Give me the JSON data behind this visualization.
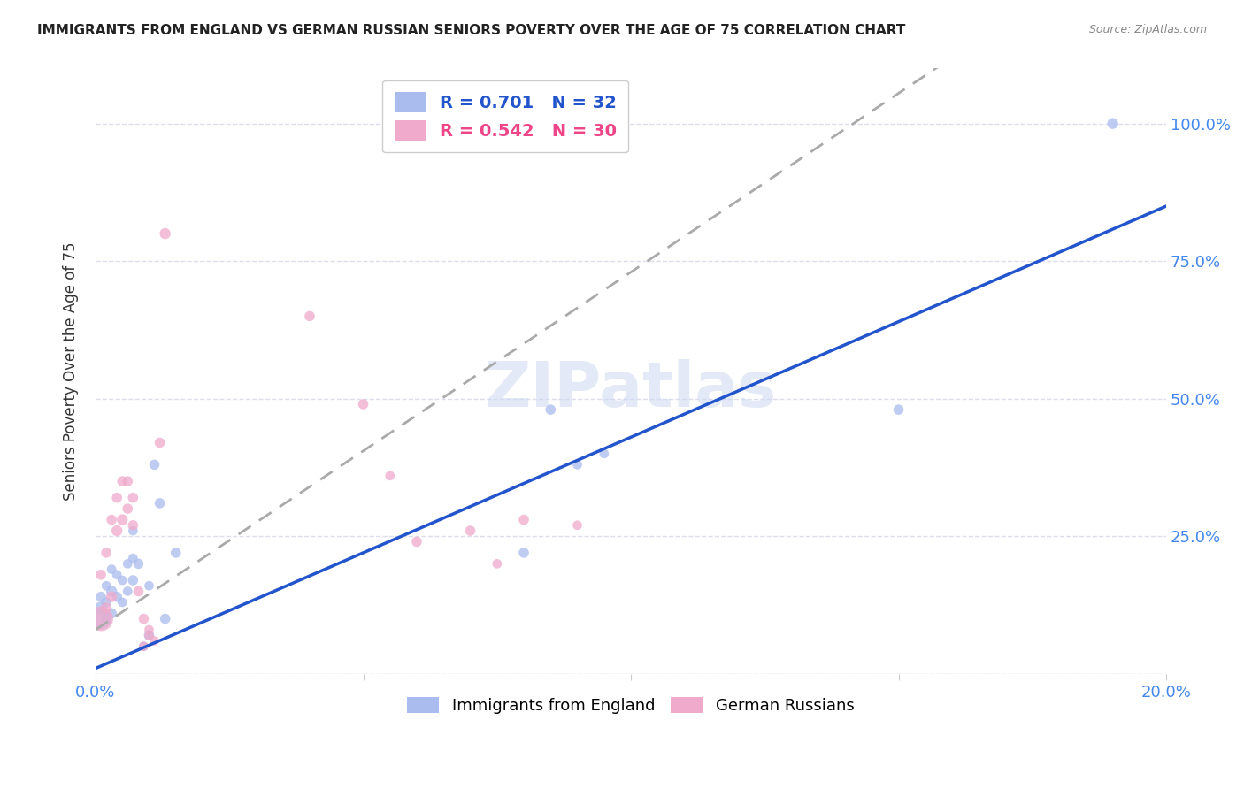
{
  "title": "IMMIGRANTS FROM ENGLAND VS GERMAN RUSSIAN SENIORS POVERTY OVER THE AGE OF 75 CORRELATION CHART",
  "source": "Source: ZipAtlas.com",
  "ylabel": "Seniors Poverty Over the Age of 75",
  "axis_label_color": "#4488ee",
  "background_color": "#ffffff",
  "grid_color": "#ddddee",
  "watermark": "ZIPatlas",
  "england_color": "#aabbee",
  "german_russian_color": "#f0aacc",
  "england_line_color": "#2255cc",
  "german_russian_line_color": "#aaaaaa",
  "england_R": 0.701,
  "england_N": 32,
  "german_russian_R": 0.542,
  "german_russian_N": 30,
  "xmin": 0.0,
  "xmax": 0.2,
  "ymin": 0.0,
  "ymax": 1.1,
  "x_ticks": [
    0.0,
    0.05,
    0.1,
    0.15,
    0.2
  ],
  "x_tick_labels": [
    "0.0%",
    "",
    "",
    "",
    "20.0%"
  ],
  "y_ticks": [
    0.0,
    0.25,
    0.5,
    0.75,
    1.0
  ],
  "y_tick_labels": [
    "",
    "25.0%",
    "50.0%",
    "75.0%",
    "100.0%"
  ],
  "england_x": [
    0.001,
    0.001,
    0.001,
    0.002,
    0.002,
    0.002,
    0.003,
    0.003,
    0.003,
    0.004,
    0.004,
    0.005,
    0.005,
    0.006,
    0.006,
    0.007,
    0.007,
    0.007,
    0.008,
    0.009,
    0.01,
    0.01,
    0.011,
    0.012,
    0.013,
    0.015,
    0.08,
    0.085,
    0.09,
    0.095,
    0.15,
    0.19
  ],
  "england_y": [
    0.1,
    0.12,
    0.14,
    0.1,
    0.13,
    0.16,
    0.11,
    0.15,
    0.19,
    0.14,
    0.18,
    0.13,
    0.17,
    0.15,
    0.2,
    0.17,
    0.21,
    0.26,
    0.2,
    0.05,
    0.07,
    0.16,
    0.38,
    0.31,
    0.1,
    0.22,
    0.22,
    0.48,
    0.38,
    0.4,
    0.48,
    1.0
  ],
  "england_sizes": [
    300,
    100,
    70,
    80,
    70,
    60,
    70,
    80,
    60,
    70,
    60,
    60,
    60,
    60,
    60,
    70,
    60,
    60,
    70,
    60,
    70,
    60,
    70,
    70,
    70,
    70,
    70,
    70,
    60,
    60,
    70,
    80
  ],
  "german_russian_x": [
    0.001,
    0.001,
    0.002,
    0.002,
    0.003,
    0.003,
    0.004,
    0.004,
    0.005,
    0.005,
    0.006,
    0.006,
    0.007,
    0.007,
    0.008,
    0.009,
    0.009,
    0.01,
    0.01,
    0.011,
    0.012,
    0.013,
    0.04,
    0.05,
    0.055,
    0.06,
    0.07,
    0.075,
    0.08,
    0.09
  ],
  "german_russian_y": [
    0.1,
    0.18,
    0.12,
    0.22,
    0.14,
    0.28,
    0.26,
    0.32,
    0.28,
    0.35,
    0.3,
    0.35,
    0.27,
    0.32,
    0.15,
    0.1,
    0.05,
    0.07,
    0.08,
    0.06,
    0.42,
    0.8,
    0.65,
    0.49,
    0.36,
    0.24,
    0.26,
    0.2,
    0.28,
    0.27
  ],
  "german_russian_sizes": [
    400,
    70,
    80,
    70,
    80,
    70,
    80,
    70,
    80,
    70,
    70,
    70,
    70,
    70,
    70,
    70,
    60,
    60,
    60,
    60,
    70,
    80,
    70,
    70,
    60,
    70,
    70,
    60,
    70,
    60
  ],
  "england_line_slope": 4.2,
  "england_line_intercept": 0.01,
  "german_russian_line_slope": 6.5,
  "german_russian_line_intercept": 0.08
}
